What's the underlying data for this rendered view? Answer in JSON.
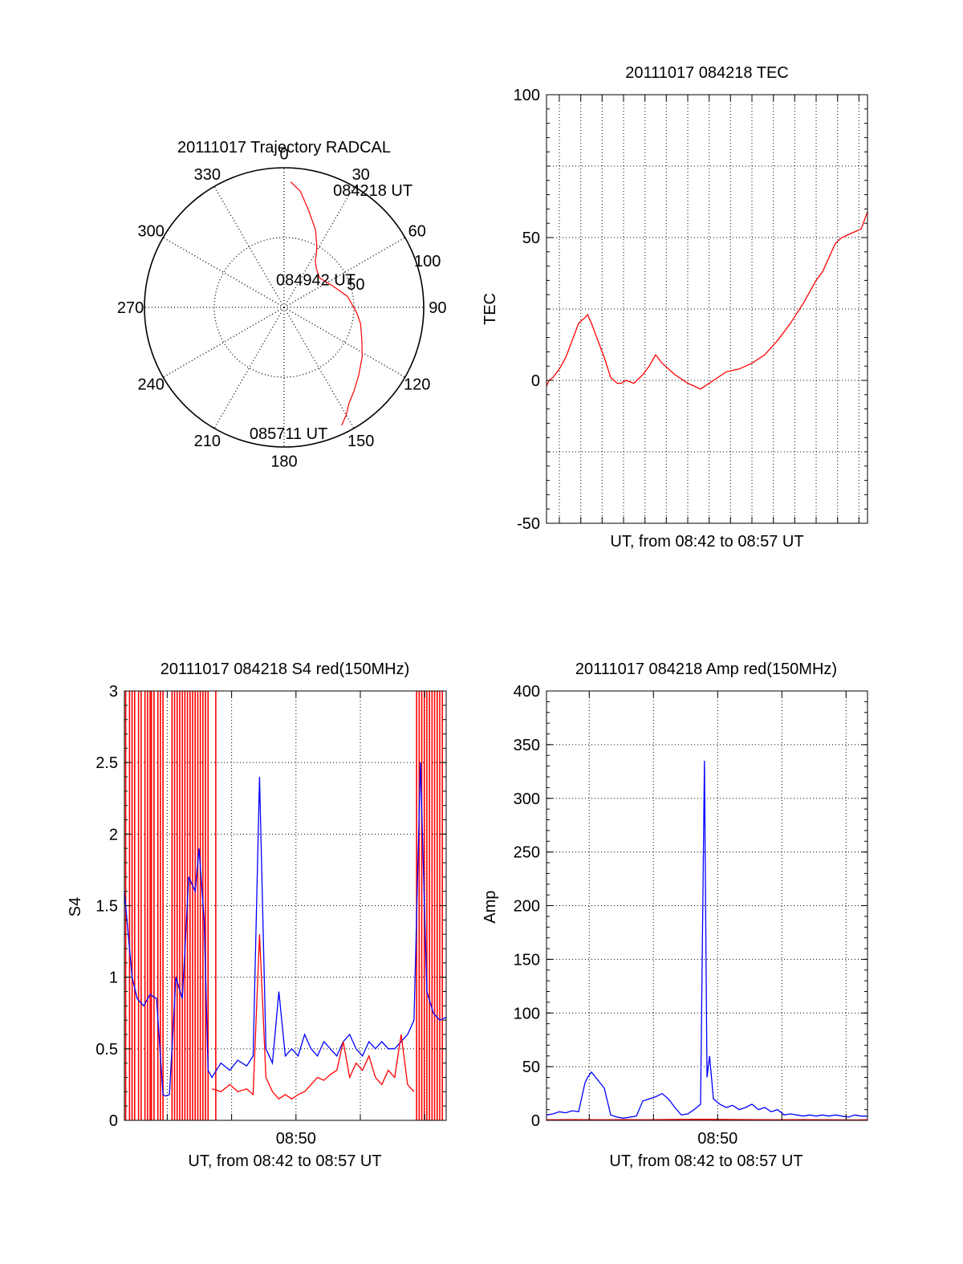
{
  "colors": {
    "red": "#ff0000",
    "blue": "#0000ff",
    "axis": "#000000",
    "grid": "#000000"
  },
  "chart_data": [
    {
      "id": "trajectory",
      "type": "polar",
      "title": "20111017 Trajectory RADCAL",
      "angle_labels": [
        "0",
        "30",
        "60",
        "90",
        "120",
        "150",
        "180",
        "210",
        "240",
        "270",
        "300",
        "330"
      ],
      "radius_labels": [
        "50",
        "100"
      ],
      "rmax": 100,
      "rings": [
        50,
        100
      ],
      "annotations": [
        {
          "text": "084218 UT",
          "azimuth": 24,
          "radius": 92
        },
        {
          "text": "084942 UT",
          "azimuth": 350,
          "radius": 20
        },
        {
          "text": "085711 UT",
          "azimuth": 194,
          "radius": 93
        }
      ],
      "series": [
        {
          "color": "red",
          "points": [
            [
              3,
              90
            ],
            [
              8,
              84
            ],
            [
              14,
              72
            ],
            [
              22,
              60
            ],
            [
              28,
              50
            ],
            [
              31,
              45
            ],
            [
              34,
              40
            ],
            [
              40,
              36
            ],
            [
              50,
              33
            ],
            [
              66,
              38
            ],
            [
              80,
              46
            ],
            [
              94,
              52
            ],
            [
              102,
              56
            ],
            [
              112,
              60
            ],
            [
              122,
              66
            ],
            [
              132,
              72
            ],
            [
              140,
              78
            ],
            [
              146,
              83
            ],
            [
              150,
              89
            ],
            [
              154,
              94
            ]
          ]
        }
      ]
    },
    {
      "id": "tec",
      "type": "line",
      "title": "20111017 084218 TEC",
      "ylabel": "TEC",
      "xlabel": "UT, from 08:42 to 08:57 UT",
      "ylim": [
        -50,
        100
      ],
      "yticks": [
        -50,
        0,
        50,
        100
      ],
      "xlim": [
        8.7,
        8.95
      ],
      "x_gridlines": [
        8.71,
        8.7267,
        8.7433,
        8.76,
        8.7767,
        8.7933,
        8.81,
        8.8267,
        8.8433,
        8.86,
        8.8767,
        8.8933,
        8.91,
        8.9267,
        8.9433
      ],
      "series": [
        {
          "color": "red",
          "x": [
            8.7,
            8.702,
            8.705,
            8.71,
            8.715,
            8.72,
            8.725,
            8.73,
            8.732,
            8.735,
            8.74,
            8.745,
            8.75,
            8.755,
            8.758,
            8.762,
            8.768,
            8.775,
            8.78,
            8.785,
            8.79,
            8.8,
            8.81,
            8.815,
            8.82,
            8.83,
            8.84,
            8.85,
            8.86,
            8.87,
            8.88,
            8.89,
            8.9,
            8.905,
            8.91,
            8.915,
            8.92,
            8.925,
            8.93,
            8.935,
            8.94,
            8.945,
            8.95
          ],
          "y": [
            -2,
            0,
            1,
            4,
            8,
            14,
            20,
            22,
            23,
            20,
            14,
            8,
            1,
            -1,
            -1,
            0,
            -1,
            2,
            5,
            9,
            6,
            2,
            -1,
            -2,
            -3,
            0,
            3,
            4,
            6,
            9,
            14,
            20,
            27,
            31,
            35,
            38,
            43,
            48,
            50,
            51,
            52,
            53,
            59
          ]
        }
      ]
    },
    {
      "id": "s4",
      "type": "line",
      "title": "20111017 084218 S4 red(150MHz)",
      "ylabel": "S4",
      "xlabel": "UT, from 08:42 to 08:57 UT",
      "xtick_labels": [
        "08:50"
      ],
      "xtick_values": [
        8.8333
      ],
      "ylim": [
        0,
        3
      ],
      "yticks": [
        0,
        0.5,
        1,
        1.5,
        2,
        2.5,
        3
      ],
      "ytick_labels": [
        "0",
        "0.5",
        "1",
        "1.5",
        "2",
        "2.5",
        "3"
      ],
      "xlim": [
        8.7,
        8.95
      ],
      "x_gridlines": [
        8.7333,
        8.7833,
        8.8333,
        8.8833,
        8.9333
      ],
      "series": [
        {
          "color": "blue",
          "x": [
            8.7,
            8.703,
            8.706,
            8.71,
            8.715,
            8.72,
            8.725,
            8.73,
            8.732,
            8.735,
            8.74,
            8.745,
            8.75,
            8.755,
            8.758,
            8.762,
            8.765,
            8.768,
            8.775,
            8.782,
            8.788,
            8.795,
            8.8,
            8.805,
            8.81,
            8.815,
            8.82,
            8.825,
            8.83,
            8.835,
            8.84,
            8.845,
            8.85,
            8.855,
            8.86,
            8.865,
            8.87,
            8.875,
            8.88,
            8.885,
            8.89,
            8.895,
            8.9,
            8.905,
            8.91,
            8.915,
            8.92,
            8.925,
            8.93,
            8.935,
            8.94,
            8.945,
            8.95
          ],
          "y": [
            1.6,
            1.3,
            1.0,
            0.85,
            0.8,
            0.88,
            0.85,
            0.18,
            0.17,
            0.18,
            1.0,
            0.85,
            1.7,
            1.6,
            1.9,
            1.4,
            0.35,
            0.3,
            0.4,
            0.35,
            0.42,
            0.38,
            0.45,
            2.4,
            0.5,
            0.4,
            0.9,
            0.45,
            0.5,
            0.45,
            0.6,
            0.5,
            0.45,
            0.55,
            0.5,
            0.45,
            0.55,
            0.6,
            0.5,
            0.45,
            0.55,
            0.5,
            0.55,
            0.5,
            0.5,
            0.55,
            0.6,
            0.7,
            2.5,
            0.9,
            0.75,
            0.7,
            0.72
          ]
        },
        {
          "color": "red",
          "x": [
            8.768,
            8.775,
            8.782,
            8.788,
            8.795,
            8.8,
            8.805,
            8.81,
            8.815,
            8.82,
            8.825,
            8.83,
            8.835,
            8.84,
            8.845,
            8.85,
            8.855,
            8.86,
            8.865,
            8.87,
            8.875,
            8.88,
            8.885,
            8.89,
            8.895,
            8.9,
            8.905,
            8.91,
            8.915,
            8.92,
            8.925
          ],
          "y": [
            0.22,
            0.2,
            0.25,
            0.2,
            0.22,
            0.18,
            1.3,
            0.3,
            0.2,
            0.15,
            0.18,
            0.15,
            0.18,
            0.2,
            0.25,
            0.3,
            0.28,
            0.32,
            0.35,
            0.55,
            0.3,
            0.4,
            0.35,
            0.45,
            0.3,
            0.25,
            0.35,
            0.3,
            0.6,
            0.25,
            0.2
          ]
        }
      ],
      "red_spike_x": [
        8.701,
        8.704,
        8.706,
        8.708,
        8.711,
        8.713,
        8.716,
        8.718,
        8.72,
        8.721,
        8.723,
        8.726,
        8.728,
        8.73,
        8.737,
        8.739,
        8.741,
        8.743,
        8.745,
        8.747,
        8.749,
        8.751,
        8.753,
        8.755,
        8.757,
        8.759,
        8.761,
        8.763,
        8.765,
        8.771,
        8.927,
        8.929,
        8.931,
        8.933,
        8.935,
        8.937,
        8.939,
        8.941,
        8.943,
        8.945,
        8.947
      ]
    },
    {
      "id": "amp",
      "type": "line",
      "title": "20111017 084218 Amp red(150MHz)",
      "ylabel": "Amp",
      "xlabel": "UT, from 08:42 to 08:57 UT",
      "xtick_labels": [
        "08:50"
      ],
      "xtick_values": [
        8.8333
      ],
      "ylim": [
        0,
        400
      ],
      "yticks": [
        0,
        50,
        100,
        150,
        200,
        250,
        300,
        350,
        400
      ],
      "xlim": [
        8.7,
        8.95
      ],
      "x_gridlines": [
        8.7333,
        8.7833,
        8.8333,
        8.8833,
        8.9333
      ],
      "series": [
        {
          "color": "blue",
          "x": [
            8.7,
            8.705,
            8.71,
            8.715,
            8.72,
            8.725,
            8.73,
            8.732,
            8.735,
            8.745,
            8.75,
            8.755,
            8.76,
            8.765,
            8.77,
            8.775,
            8.78,
            8.785,
            8.79,
            8.795,
            8.8,
            8.805,
            8.81,
            8.815,
            8.82,
            8.823,
            8.825,
            8.827,
            8.83,
            8.835,
            8.84,
            8.845,
            8.85,
            8.855,
            8.86,
            8.865,
            8.87,
            8.875,
            8.88,
            8.885,
            8.89,
            8.895,
            8.9,
            8.905,
            8.91,
            8.915,
            8.92,
            8.925,
            8.93,
            8.935,
            8.94,
            8.945,
            8.95
          ],
          "y": [
            5,
            6,
            8,
            7,
            9,
            8,
            35,
            40,
            45,
            30,
            5,
            3,
            2,
            3,
            4,
            18,
            20,
            22,
            25,
            20,
            12,
            5,
            6,
            10,
            15,
            335,
            40,
            60,
            20,
            15,
            12,
            14,
            10,
            12,
            15,
            10,
            12,
            8,
            10,
            5,
            6,
            5,
            4,
            5,
            4,
            5,
            4,
            5,
            4,
            3,
            5,
            4,
            4
          ]
        },
        {
          "color": "red",
          "x": [
            8.7,
            8.72,
            8.74,
            8.76,
            8.78,
            8.8,
            8.82,
            8.84,
            8.86,
            8.88,
            8.9,
            8.92,
            8.94,
            8.95
          ],
          "y": [
            0.5,
            0.6,
            0.5,
            0.6,
            0.5,
            0.8,
            1,
            0.8,
            0.7,
            0.5,
            0.6,
            0.5,
            0.4,
            0.5
          ]
        }
      ]
    }
  ]
}
